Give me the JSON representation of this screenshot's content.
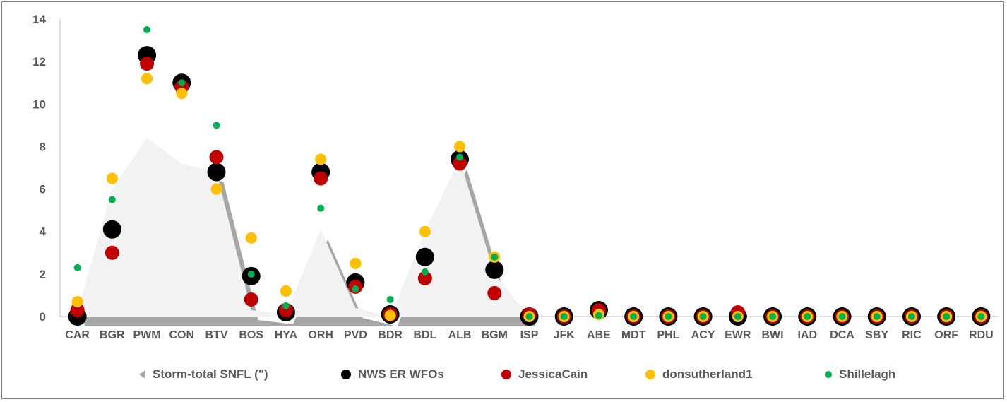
{
  "chart_data": {
    "type": "scatter",
    "categories": [
      "CAR",
      "BGR",
      "PWM",
      "CON",
      "BTV",
      "BOS",
      "HYA",
      "ORH",
      "PVD",
      "BDR",
      "BDL",
      "ALB",
      "BGM",
      "ISP",
      "JFK",
      "ABE",
      "MDT",
      "PHL",
      "ACY",
      "EWR",
      "BWI",
      "IAD",
      "DCA",
      "SBY",
      "RIC",
      "ORF",
      "RDU"
    ],
    "ylim": [
      0,
      14
    ],
    "yticks": [
      0,
      2,
      4,
      6,
      8,
      10,
      12,
      14
    ],
    "grid": false,
    "legend_position": "bottom",
    "series": [
      {
        "name": "Storm-total SNFL (\")",
        "kind": "area",
        "color": "#f2f2f2",
        "values": [
          0.2,
          6.0,
          8.4,
          7.2,
          6.8,
          0.3,
          0.1,
          4.1,
          0.4,
          0.0,
          4.0,
          7.4,
          2.0,
          0.0,
          0.0,
          0.0,
          0.0,
          0.0,
          0.0,
          0.0,
          0.0,
          0.0,
          0.0,
          0.0,
          0.0,
          0.0,
          0.0
        ]
      },
      {
        "name": "NWS ER WFOs",
        "kind": "marker",
        "color": "#000000",
        "values": [
          0.0,
          4.1,
          12.3,
          11.0,
          6.8,
          1.9,
          0.2,
          6.8,
          1.6,
          0.1,
          2.8,
          7.4,
          2.2,
          0.0,
          0.0,
          0.3,
          0.0,
          0.0,
          0.0,
          0.0,
          0.0,
          0.0,
          0.0,
          0.0,
          0.0,
          0.0,
          0.0
        ]
      },
      {
        "name": "JessicaCain",
        "kind": "marker",
        "color": "#c00000",
        "values": [
          0.3,
          3.0,
          11.9,
          10.8,
          7.5,
          0.8,
          0.3,
          6.5,
          1.4,
          0.1,
          1.8,
          7.2,
          1.1,
          0.1,
          0.0,
          0.3,
          0.0,
          0.0,
          0.0,
          0.2,
          0.0,
          0.0,
          0.0,
          0.0,
          0.0,
          0.0,
          0.0
        ]
      },
      {
        "name": "donsutherland1",
        "kind": "marker",
        "color": "#ffc000",
        "values": [
          0.7,
          6.5,
          11.2,
          10.5,
          6.0,
          3.7,
          1.2,
          7.4,
          2.5,
          0.05,
          4.0,
          8.0,
          2.8,
          0.0,
          0.0,
          0.1,
          0.0,
          0.0,
          0.0,
          0.0,
          0.0,
          0.0,
          0.0,
          0.0,
          0.0,
          0.0,
          0.0
        ]
      },
      {
        "name": "Shillelagh",
        "kind": "marker",
        "color": "#00b050",
        "values": [
          2.3,
          5.5,
          13.5,
          11.0,
          9.0,
          2.0,
          0.5,
          5.1,
          1.3,
          0.8,
          2.1,
          7.5,
          2.8,
          0.0,
          0.0,
          0.05,
          0.0,
          0.0,
          0.0,
          0.0,
          0.0,
          0.0,
          0.0,
          0.0,
          0.0,
          0.0,
          0.0
        ]
      }
    ]
  }
}
